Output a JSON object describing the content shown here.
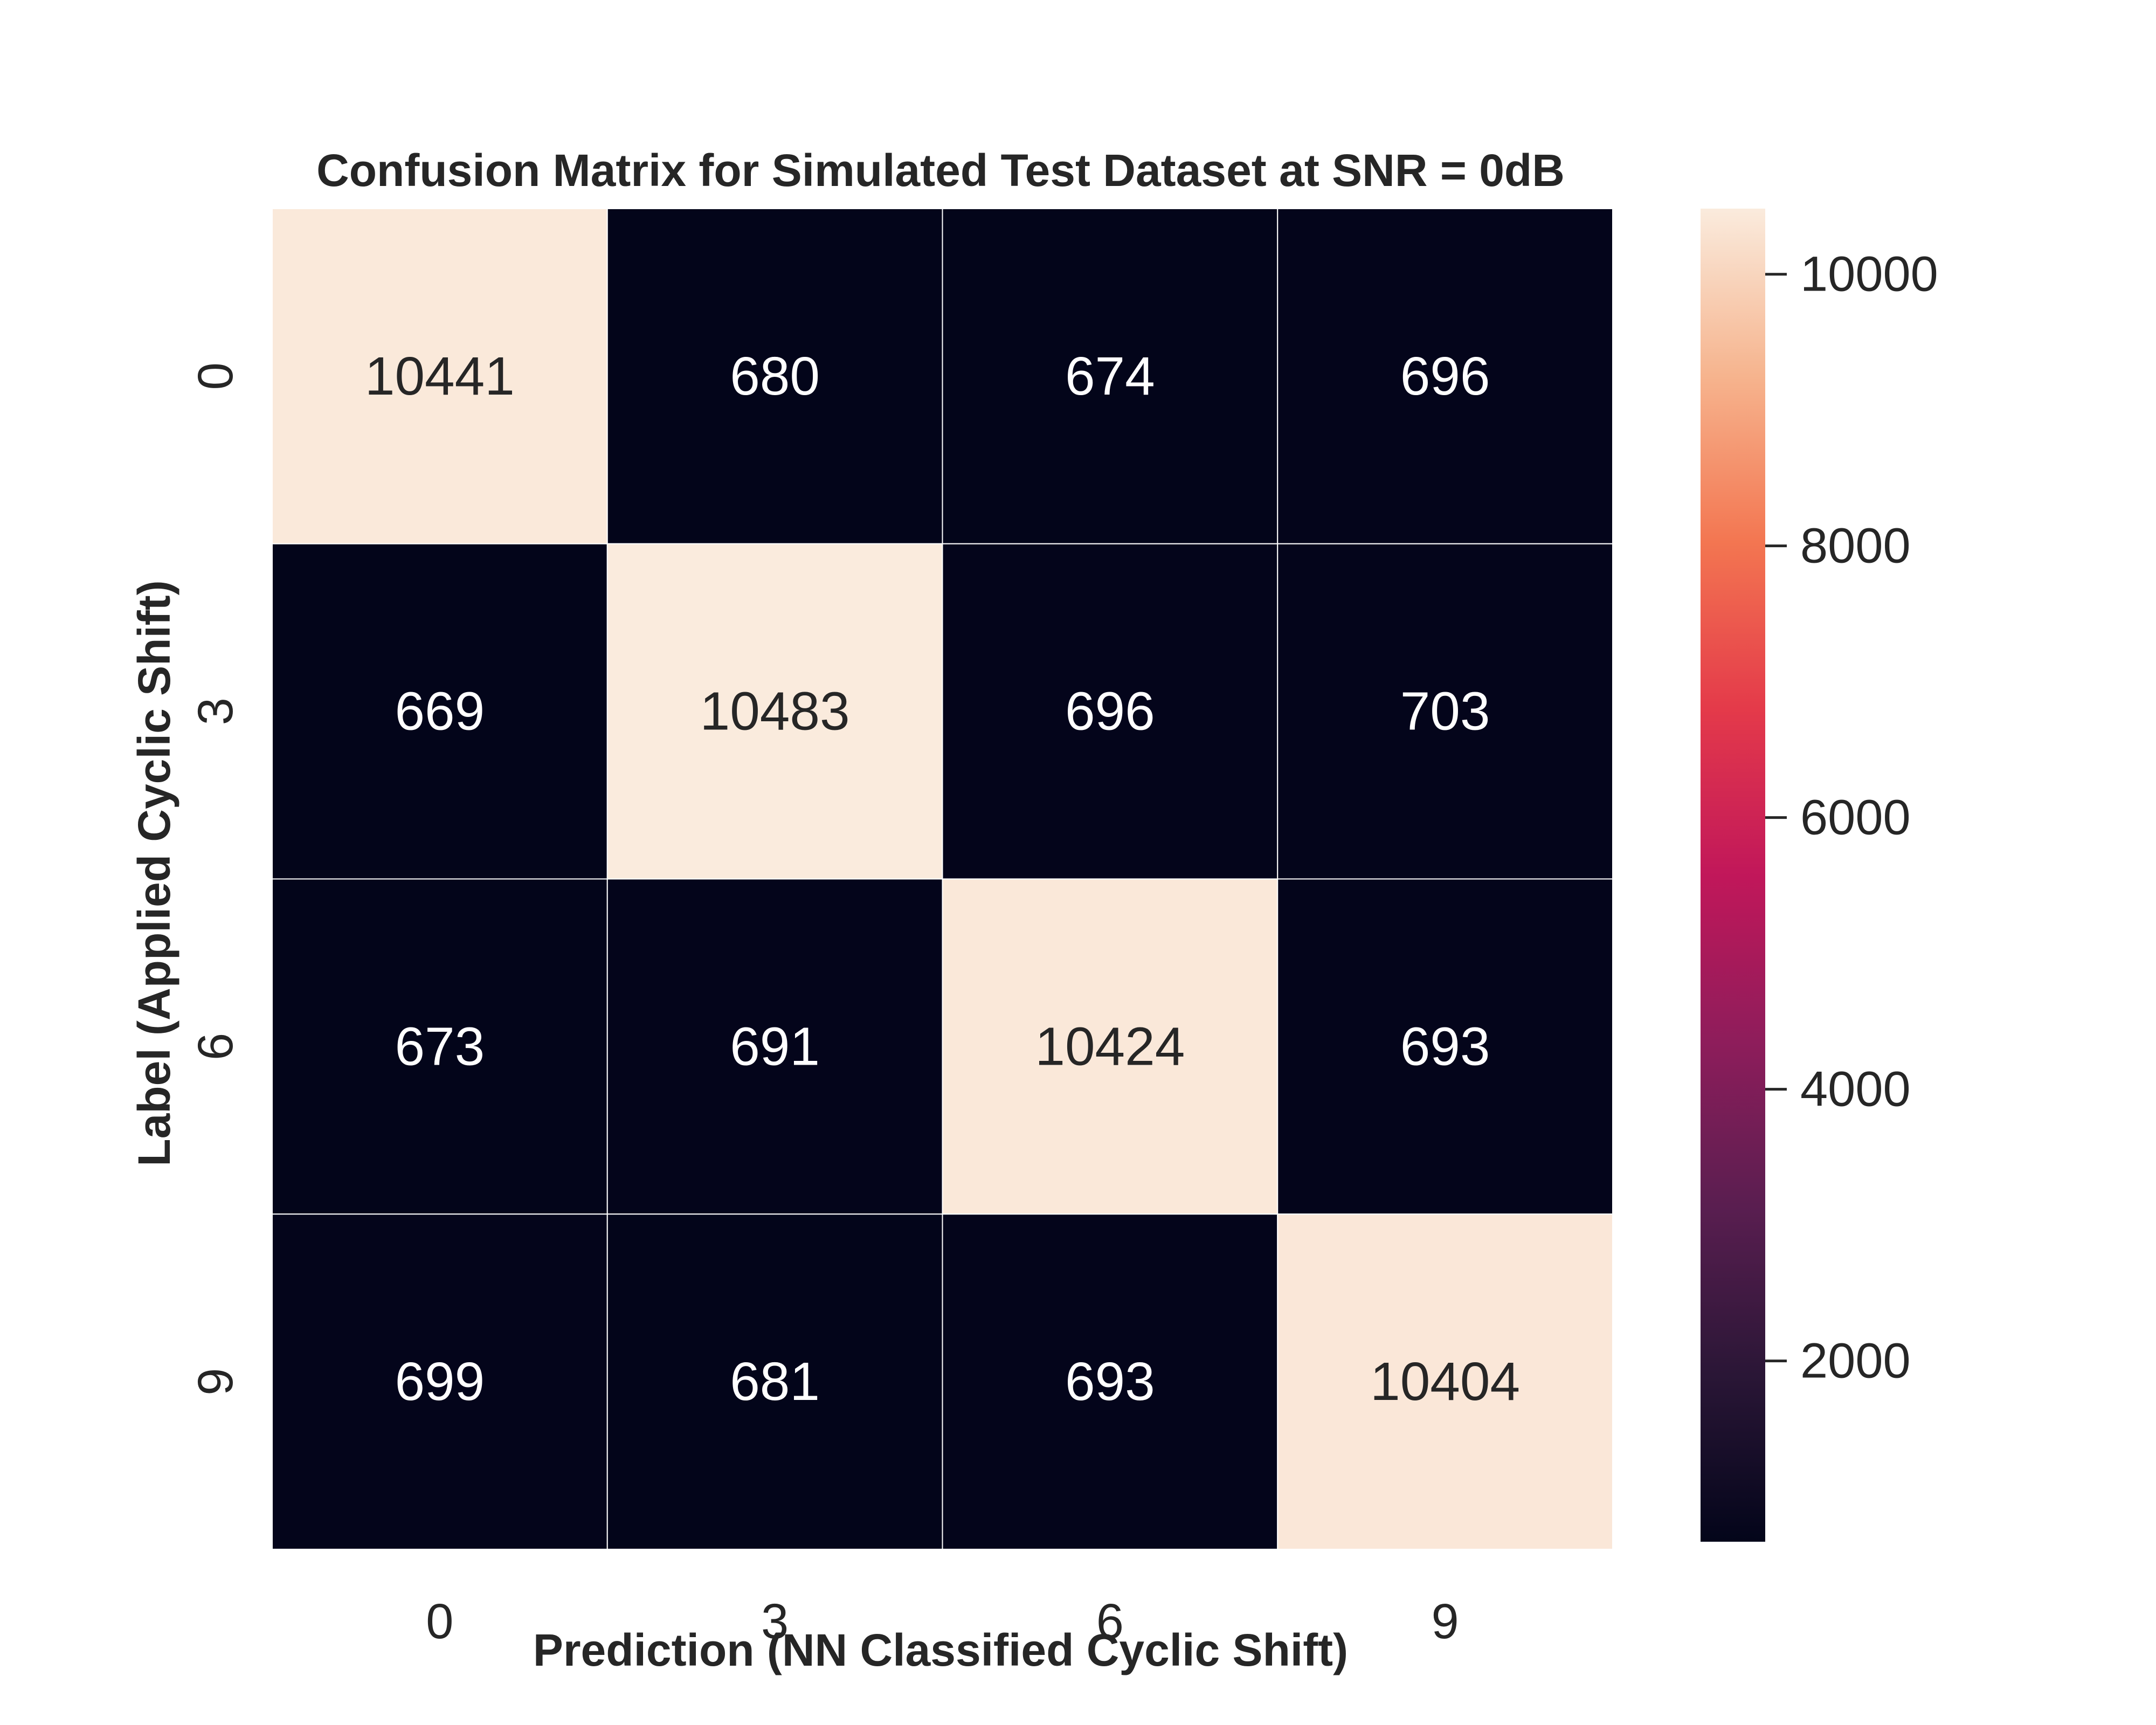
{
  "chart_data": {
    "type": "heatmap",
    "title": "Confusion Matrix for Simulated Test Dataset at SNR = 0dB",
    "xlabel": "Prediction (NN Classified Cyclic Shift)",
    "ylabel": "Label (Applied Cyclic Shift)",
    "x_categories": [
      "0",
      "3",
      "6",
      "9"
    ],
    "y_categories": [
      "0",
      "3",
      "6",
      "9"
    ],
    "values": [
      [
        10441,
        680,
        674,
        696
      ],
      [
        669,
        10483,
        696,
        703
      ],
      [
        673,
        691,
        10424,
        693
      ],
      [
        699,
        681,
        693,
        10404
      ]
    ],
    "colorbar": {
      "colormap": "rocket",
      "range": [
        669,
        10483
      ],
      "ticks": [
        2000,
        4000,
        6000,
        8000,
        10000
      ],
      "tick_labels": [
        "2000",
        "4000",
        "6000",
        "8000",
        "10000"
      ]
    },
    "grid": false,
    "colors": {
      "low": "#03051a",
      "high": "#faebdd",
      "cell_border": "#ffffff",
      "text_dark": "#262626",
      "text_light": "#ffffff"
    }
  }
}
